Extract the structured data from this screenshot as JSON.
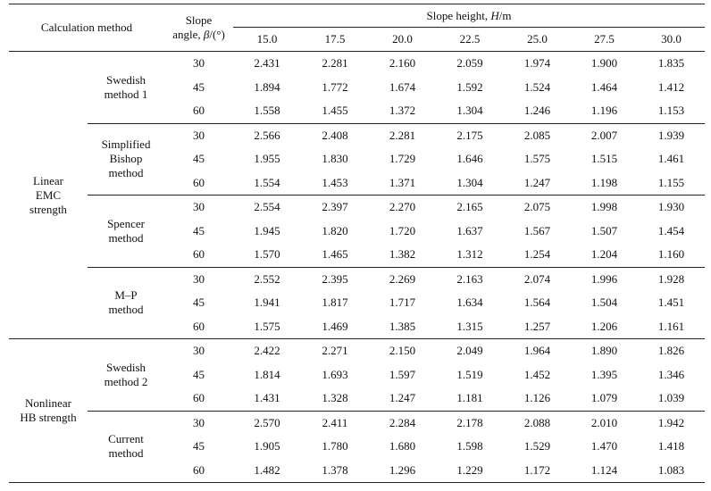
{
  "header": {
    "calc_method": "Calculation method",
    "slope_angle_line1": "Slope",
    "slope_angle_line2_pre": "angle, ",
    "slope_angle_var": "β",
    "slope_angle_unit": "/(°)",
    "slope_height_pre": "Slope height, ",
    "slope_height_var": "H",
    "slope_height_unit": "/m",
    "heights": [
      "15.0",
      "17.5",
      "20.0",
      "22.5",
      "25.0",
      "27.5",
      "30.0"
    ]
  },
  "sections": [
    {
      "label_lines": [
        "Linear",
        "EMC",
        "strength"
      ],
      "methods": [
        {
          "label_lines": [
            "Swedish",
            "method 1"
          ],
          "rows": [
            {
              "angle": "30",
              "values": [
                "2.431",
                "2.281",
                "2.160",
                "2.059",
                "1.974",
                "1.900",
                "1.835"
              ]
            },
            {
              "angle": "45",
              "values": [
                "1.894",
                "1.772",
                "1.674",
                "1.592",
                "1.524",
                "1.464",
                "1.412"
              ]
            },
            {
              "angle": "60",
              "values": [
                "1.558",
                "1.455",
                "1.372",
                "1.304",
                "1.246",
                "1.196",
                "1.153"
              ]
            }
          ]
        },
        {
          "label_lines": [
            "Simplified",
            "Bishop",
            "method"
          ],
          "rows": [
            {
              "angle": "30",
              "values": [
                "2.566",
                "2.408",
                "2.281",
                "2.175",
                "2.085",
                "2.007",
                "1.939"
              ]
            },
            {
              "angle": "45",
              "values": [
                "1.955",
                "1.830",
                "1.729",
                "1.646",
                "1.575",
                "1.515",
                "1.461"
              ]
            },
            {
              "angle": "60",
              "values": [
                "1.554",
                "1.453",
                "1.371",
                "1.304",
                "1.247",
                "1.198",
                "1.155"
              ]
            }
          ]
        },
        {
          "label_lines": [
            "Spencer",
            "method"
          ],
          "rows": [
            {
              "angle": "30",
              "values": [
                "2.554",
                "2.397",
                "2.270",
                "2.165",
                "2.075",
                "1.998",
                "1.930"
              ]
            },
            {
              "angle": "45",
              "values": [
                "1.945",
                "1.820",
                "1.720",
                "1.637",
                "1.567",
                "1.507",
                "1.454"
              ]
            },
            {
              "angle": "60",
              "values": [
                "1.570",
                "1.465",
                "1.382",
                "1.312",
                "1.254",
                "1.204",
                "1.160"
              ]
            }
          ]
        },
        {
          "label_lines": [
            "M–P",
            "method"
          ],
          "rows": [
            {
              "angle": "30",
              "values": [
                "2.552",
                "2.395",
                "2.269",
                "2.163",
                "2.074",
                "1.996",
                "1.928"
              ]
            },
            {
              "angle": "45",
              "values": [
                "1.941",
                "1.817",
                "1.717",
                "1.634",
                "1.564",
                "1.504",
                "1.451"
              ]
            },
            {
              "angle": "60",
              "values": [
                "1.575",
                "1.469",
                "1.385",
                "1.315",
                "1.257",
                "1.206",
                "1.161"
              ]
            }
          ]
        }
      ]
    },
    {
      "label_lines": [
        "Nonlinear",
        "HB strength"
      ],
      "methods": [
        {
          "label_lines": [
            "Swedish",
            "method 2"
          ],
          "rows": [
            {
              "angle": "30",
              "values": [
                "2.422",
                "2.271",
                "2.150",
                "2.049",
                "1.964",
                "1.890",
                "1.826"
              ]
            },
            {
              "angle": "45",
              "values": [
                "1.814",
                "1.693",
                "1.597",
                "1.519",
                "1.452",
                "1.395",
                "1.346"
              ]
            },
            {
              "angle": "60",
              "values": [
                "1.431",
                "1.328",
                "1.247",
                "1.181",
                "1.126",
                "1.079",
                "1.039"
              ]
            }
          ]
        },
        {
          "label_lines": [
            "Current",
            "method"
          ],
          "rows": [
            {
              "angle": "30",
              "values": [
                "2.570",
                "2.411",
                "2.284",
                "2.178",
                "2.088",
                "2.010",
                "1.942"
              ]
            },
            {
              "angle": "45",
              "values": [
                "1.905",
                "1.780",
                "1.680",
                "1.598",
                "1.529",
                "1.470",
                "1.418"
              ]
            },
            {
              "angle": "60",
              "values": [
                "1.482",
                "1.378",
                "1.296",
                "1.229",
                "1.172",
                "1.124",
                "1.083"
              ]
            }
          ]
        }
      ]
    }
  ]
}
